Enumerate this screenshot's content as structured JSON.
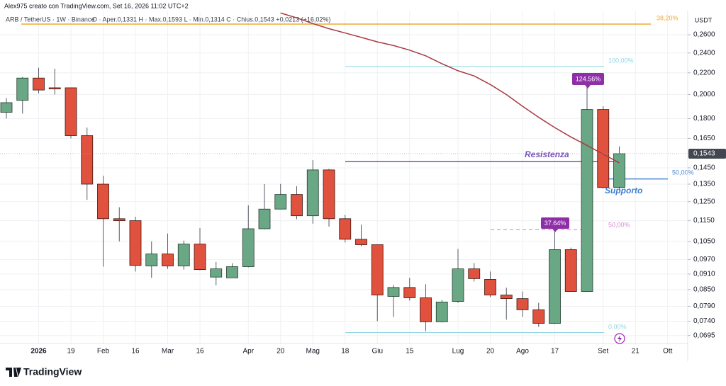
{
  "chart_data": {
    "type": "candlestick",
    "source": "Alex975 creato con TradingView.com, Set 16, 2026 11:02 UTC+2",
    "title": "ARB / TetherUS · 1W · Binance",
    "subtitle": "O · Aper.0,1331  H · Max.0,1593  L · Min.0,1314  C · Chius.0,1543  +0,0213 (+16,02%)",
    "y_axis_label": "USDT",
    "brand": "TradingView",
    "log_scale": true,
    "grid": true,
    "up_color": "#6aa885",
    "down_color": "#e0523e",
    "categories": [
      null,
      null,
      "2026",
      null,
      "19",
      null,
      "Feb",
      null,
      "16",
      null,
      "Mar",
      null,
      "16",
      null,
      null,
      "Apr",
      null,
      "20",
      null,
      "Mag",
      null,
      "18",
      null,
      "Giu",
      null,
      "15",
      null,
      null,
      "Lug",
      null,
      "20",
      null,
      "Ago",
      null,
      "17",
      null,
      null,
      "Set",
      null,
      "21",
      null,
      "Ott"
    ],
    "open": [
      0.185,
      0.195,
      0.215,
      0.206,
      0.206,
      0.167,
      0.135,
      0.116,
      0.115,
      0.0943,
      0.0994,
      0.0943,
      0.1038,
      0.0898,
      0.0895,
      0.094,
      0.111,
      0.121,
      0.129,
      0.1175,
      0.1437,
      0.116,
      0.106,
      0.1035,
      0.0825,
      0.0858,
      0.082,
      0.0738,
      0.0807,
      0.0931,
      0.0889,
      0.083,
      0.0817,
      0.0778,
      0.0733,
      0.1013,
      0.0843,
      0.1873,
      0.1331,
      null,
      null,
      null
    ],
    "high": [
      0.197,
      0.216,
      0.225,
      0.224,
      0.206,
      0.173,
      0.14,
      0.122,
      0.117,
      0.105,
      0.1087,
      0.1054,
      0.1114,
      0.096,
      0.0954,
      0.123,
      0.135,
      0.1351,
      0.1338,
      0.15,
      0.1443,
      0.118,
      0.113,
      0.1035,
      0.0867,
      0.0895,
      0.087,
      0.0812,
      0.1016,
      0.0955,
      0.092,
      0.0857,
      0.0843,
      0.0802,
      0.11,
      0.1022,
      0.2086,
      0.19,
      0.1593,
      null,
      null,
      null
    ],
    "low": [
      0.18,
      0.184,
      0.201,
      0.2,
      0.165,
      0.126,
      0.094,
      0.105,
      0.092,
      0.0895,
      0.0931,
      0.0928,
      0.0925,
      0.0866,
      0.0895,
      0.0937,
      0.1107,
      0.1209,
      0.1157,
      0.1135,
      0.1121,
      0.1045,
      0.1028,
      0.074,
      0.0754,
      0.081,
      0.0708,
      0.0736,
      0.0802,
      0.0881,
      0.0822,
      0.0745,
      0.0754,
      0.0722,
      0.0731,
      0.0842,
      0.0842,
      0.1325,
      0.1314,
      null,
      null,
      null
    ],
    "close": [
      0.193,
      0.215,
      0.204,
      0.205,
      0.167,
      0.135,
      0.116,
      0.115,
      0.0945,
      0.0994,
      0.0943,
      0.1038,
      0.0928,
      0.0931,
      0.094,
      0.111,
      0.121,
      0.129,
      0.1175,
      0.1437,
      0.116,
      0.106,
      0.1035,
      0.083,
      0.0858,
      0.082,
      0.0738,
      0.0805,
      0.0931,
      0.0892,
      0.083,
      0.0817,
      0.0778,
      0.0733,
      0.1013,
      0.0843,
      0.1873,
      0.133,
      0.1543,
      null,
      null,
      null
    ],
    "moving_average": {
      "color": "#a83a40",
      "values": [
        null,
        null,
        null,
        null,
        null,
        null,
        null,
        null,
        null,
        null,
        null,
        null,
        null,
        null,
        null,
        null,
        null,
        0.286,
        0.28,
        0.273,
        0.267,
        0.262,
        0.257,
        0.252,
        0.248,
        0.243,
        0.237,
        0.229,
        0.222,
        0.217,
        0.209,
        0.2,
        0.19,
        0.181,
        0.173,
        0.166,
        0.16,
        0.154,
        0.1482,
        null,
        null,
        null
      ]
    },
    "ylim": [
      0.0671,
      0.289
    ],
    "yticks": [
      {
        "value": 0.26,
        "label": "0,2600"
      },
      {
        "value": 0.24,
        "label": "0,2400"
      },
      {
        "value": 0.22,
        "label": "0,2200"
      },
      {
        "value": 0.2,
        "label": "0,2000"
      },
      {
        "value": 0.18,
        "label": "0,1800"
      },
      {
        "value": 0.165,
        "label": "0,1650"
      },
      {
        "value": 0.145,
        "label": "0,1450"
      },
      {
        "value": 0.135,
        "label": "0,1350"
      },
      {
        "value": 0.125,
        "label": "0,1250"
      },
      {
        "value": 0.115,
        "label": "0,1150"
      },
      {
        "value": 0.105,
        "label": "0,1050"
      },
      {
        "value": 0.097,
        "label": "0,0970"
      },
      {
        "value": 0.091,
        "label": "0,0910"
      },
      {
        "value": 0.085,
        "label": "0,0850"
      },
      {
        "value": 0.079,
        "label": "0,0790"
      },
      {
        "value": 0.074,
        "label": "0,0740"
      },
      {
        "value": 0.0695,
        "label": "0,0695"
      }
    ],
    "last_price": {
      "value": 0.1543,
      "label": "0,1543"
    },
    "levels": [
      {
        "label": "38,20%",
        "value": 0.2724,
        "color": "#f0a830"
      },
      {
        "label": "100,00%",
        "value": 0.2263,
        "color": "#8fd6e3"
      },
      {
        "label": "0,00%",
        "value": 0.0704,
        "color": "#8fd6e3"
      },
      {
        "label": "50,00%",
        "value": 0.1105,
        "color": "#d98ad6"
      },
      {
        "label": "50,00%",
        "value": 0.1381,
        "color": "#4a86d8"
      },
      {
        "label": "Resistenza",
        "value": 0.149,
        "color": "#7b52b8"
      }
    ],
    "annotations": [
      "Supporto"
    ],
    "callouts": [
      "124.56%",
      "37.64%"
    ]
  }
}
